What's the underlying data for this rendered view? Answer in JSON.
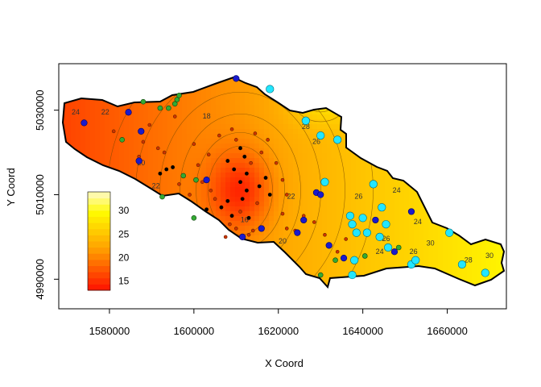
{
  "chart_data": {
    "type": "heatmap",
    "subtype": "filled-contour-map-with-points",
    "xlabel": "X Coord",
    "ylabel": "Y Coord",
    "xlim": [
      1568000,
      1674000
    ],
    "ylim": [
      4983000,
      5041000
    ],
    "x_ticks": [
      1580000,
      1600000,
      1620000,
      1640000,
      1660000
    ],
    "y_ticks": [
      4990000,
      5010000,
      5030000
    ],
    "x_tick_labels": [
      "1580000",
      "1600000",
      "1620000",
      "1640000",
      "1660000"
    ],
    "y_tick_labels": [
      "4990000",
      "5010000",
      "5030000"
    ],
    "color_scale": {
      "min": 12,
      "max": 34,
      "low_color": "#ff0000",
      "high_color": "#ffffe0",
      "legend_ticks": [
        15,
        20,
        25,
        30
      ],
      "legend_labels": [
        "15",
        "20",
        "25",
        "30"
      ]
    },
    "contour_labels": [
      {
        "text": "24",
        "x": 1572000,
        "y": 5029000
      },
      {
        "text": "22",
        "x": 1579000,
        "y": 5029000
      },
      {
        "text": "18",
        "x": 1603000,
        "y": 5028000
      },
      {
        "text": "20",
        "x": 1587500,
        "y": 5017000
      },
      {
        "text": "22",
        "x": 1591000,
        "y": 5011500
      },
      {
        "text": "16",
        "x": 1612000,
        "y": 5003500
      },
      {
        "text": "22",
        "x": 1623000,
        "y": 5009000
      },
      {
        "text": "20",
        "x": 1621000,
        "y": 4998500
      },
      {
        "text": "28",
        "x": 1626500,
        "y": 5025500
      },
      {
        "text": "26",
        "x": 1629000,
        "y": 5022000
      },
      {
        "text": "24",
        "x": 1648000,
        "y": 5010500
      },
      {
        "text": "26",
        "x": 1639000,
        "y": 5009000
      },
      {
        "text": "26",
        "x": 1645500,
        "y": 4999000
      },
      {
        "text": "24",
        "x": 1653000,
        "y": 5003000
      },
      {
        "text": "30",
        "x": 1656000,
        "y": 4998000
      },
      {
        "text": "28",
        "x": 1665000,
        "y": 4994000
      },
      {
        "text": "30",
        "x": 1670000,
        "y": 4995000
      },
      {
        "text": "26",
        "x": 1652000,
        "y": 4996000
      },
      {
        "text": "24",
        "x": 1644000,
        "y": 4996000
      }
    ],
    "series": [
      {
        "symbol": "black-dot",
        "color": "#000000",
        "points": [
          [
            1611000,
            5021000
          ],
          [
            1612000,
            5019000
          ],
          [
            1608000,
            5018000
          ],
          [
            1609500,
            5016000
          ],
          [
            1612500,
            5015000
          ],
          [
            1611000,
            5013000
          ],
          [
            1615500,
            5012000
          ],
          [
            1618000,
            5010000
          ],
          [
            1611500,
            5009000
          ],
          [
            1608000,
            5008500
          ],
          [
            1606500,
            5007000
          ],
          [
            1603000,
            5006500
          ],
          [
            1612500,
            5011000
          ],
          [
            1609000,
            5005000
          ],
          [
            1613000,
            5004500
          ],
          [
            1617000,
            5014000
          ],
          [
            1593500,
            5016000
          ],
          [
            1595000,
            5016500
          ],
          [
            1592000,
            5015000
          ]
        ]
      },
      {
        "symbol": "small-red-dot",
        "color": "#cc3300",
        "points": [
          [
            1581000,
            5025000
          ],
          [
            1588000,
            5022500
          ],
          [
            1593000,
            5020000
          ],
          [
            1600000,
            5022000
          ],
          [
            1606000,
            5024000
          ],
          [
            1603500,
            5019500
          ],
          [
            1601000,
            5017000
          ],
          [
            1602000,
            5013000
          ],
          [
            1596500,
            5012500
          ],
          [
            1599000,
            5010000
          ],
          [
            1604000,
            5011000
          ],
          [
            1605000,
            5009000
          ],
          [
            1613500,
            5017500
          ],
          [
            1616000,
            5020000
          ],
          [
            1610000,
            5023000
          ],
          [
            1609000,
            5025500
          ],
          [
            1614500,
            5024500
          ],
          [
            1621000,
            5013500
          ],
          [
            1622000,
            5010000
          ],
          [
            1621000,
            5005500
          ],
          [
            1610000,
            5002000
          ],
          [
            1614000,
            5001500
          ],
          [
            1608500,
            5003000
          ],
          [
            1607500,
            5000000
          ],
          [
            1613000,
            5000500
          ],
          [
            1624000,
            5001500
          ],
          [
            1626000,
            5005000
          ],
          [
            1628500,
            5003500
          ],
          [
            1631000,
            5000500
          ],
          [
            1634000,
            4996500
          ],
          [
            1636000,
            4999500
          ],
          [
            1622000,
            5002000
          ],
          [
            1611000,
            5006000
          ],
          [
            1615000,
            5008000
          ],
          [
            1619500,
            5017500
          ],
          [
            1617500,
            5023000
          ],
          [
            1595500,
            5028500
          ],
          [
            1589500,
            5026500
          ],
          [
            1587000,
            5019000
          ],
          [
            1591500,
            5021000
          ]
        ]
      },
      {
        "symbol": "green-dot",
        "color": "#33aa33",
        "points": [
          [
            1592000,
            5030500
          ],
          [
            1594000,
            5030500
          ],
          [
            1595500,
            5031500
          ],
          [
            1596000,
            5032500
          ],
          [
            1596500,
            5033500
          ],
          [
            1588000,
            5032000
          ],
          [
            1583000,
            5023000
          ],
          [
            1592500,
            5009500
          ],
          [
            1600500,
            5013500
          ],
          [
            1600000,
            5004500
          ],
          [
            1633500,
            4994500
          ],
          [
            1630000,
            4991000
          ],
          [
            1648500,
            4997500
          ],
          [
            1640500,
            4995500
          ],
          [
            1597500,
            5014500
          ]
        ]
      },
      {
        "symbol": "blue-dot",
        "color": "#1a1acc",
        "points": [
          [
            1574000,
            5027000
          ],
          [
            1584500,
            5029500
          ],
          [
            1587500,
            5025000
          ],
          [
            1587000,
            5018000
          ],
          [
            1610000,
            5037500
          ],
          [
            1603000,
            5013500
          ],
          [
            1629000,
            5010500
          ],
          [
            1630000,
            5010000
          ],
          [
            1624500,
            5001000
          ],
          [
            1632000,
            4998000
          ],
          [
            1635500,
            4995000
          ],
          [
            1643000,
            5004000
          ],
          [
            1647500,
            4996500
          ],
          [
            1651500,
            5006000
          ],
          [
            1626000,
            5004000
          ],
          [
            1616000,
            5002000
          ],
          [
            1611500,
            5000000
          ]
        ]
      },
      {
        "symbol": "cyan-circle",
        "color": "#22e6ff",
        "points": [
          [
            1618000,
            5035000
          ],
          [
            1626500,
            5027500
          ],
          [
            1630000,
            5024000
          ],
          [
            1634000,
            5023000
          ],
          [
            1631000,
            5013000
          ],
          [
            1642500,
            5012500
          ],
          [
            1637000,
            5005000
          ],
          [
            1637500,
            5003000
          ],
          [
            1640000,
            5004500
          ],
          [
            1638500,
            5001000
          ],
          [
            1644500,
            5007000
          ],
          [
            1645500,
            5003000
          ],
          [
            1644000,
            5000000
          ],
          [
            1646000,
            4997500
          ],
          [
            1638000,
            4994500
          ],
          [
            1637500,
            4991000
          ],
          [
            1651500,
            4993500
          ],
          [
            1652500,
            4994500
          ],
          [
            1660500,
            5001000
          ],
          [
            1663500,
            4993500
          ],
          [
            1669000,
            4991500
          ],
          [
            1641000,
            5001000
          ]
        ]
      }
    ]
  }
}
